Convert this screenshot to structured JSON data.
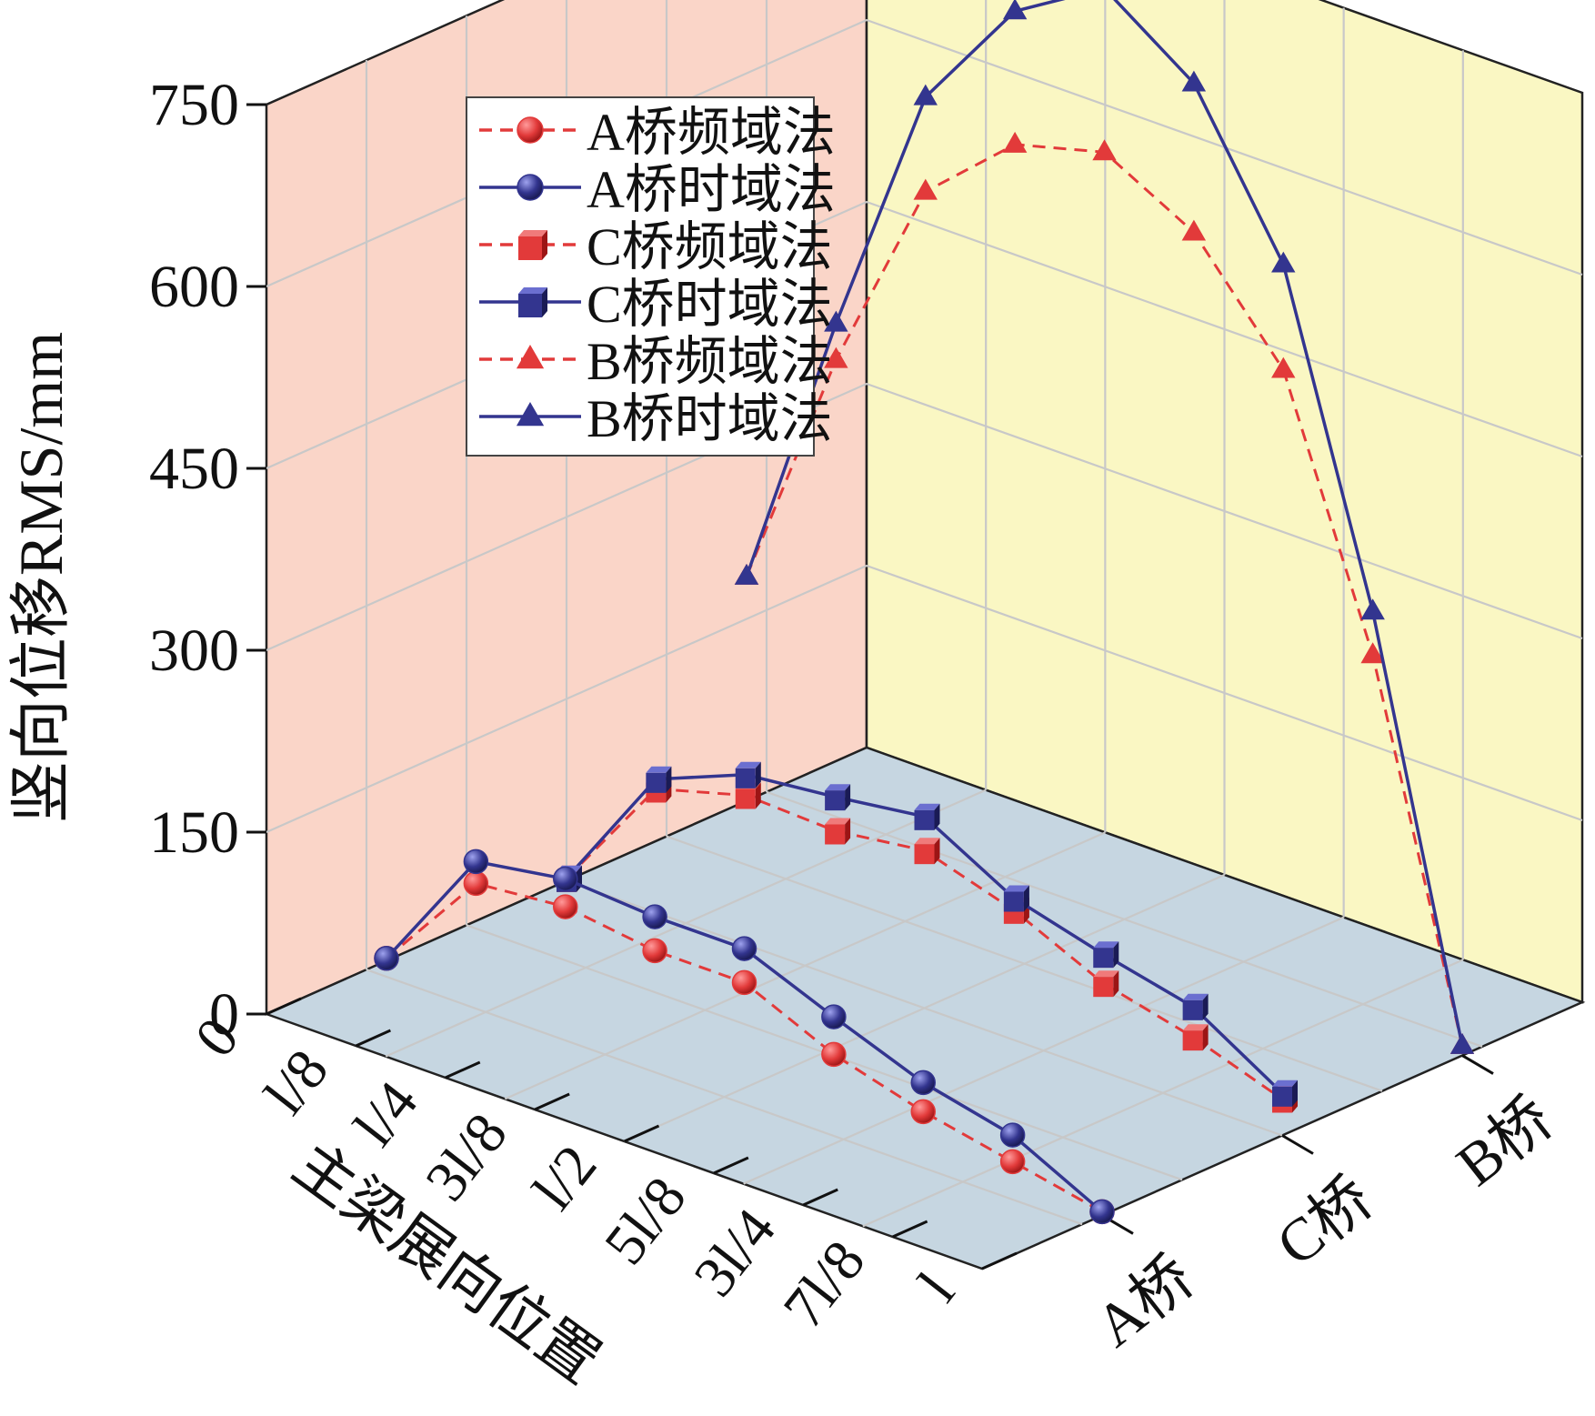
{
  "chart_data": {
    "type": "line",
    "subtype": "3d-waterfall",
    "title": "",
    "ylabel": "竖向位移RMS/mm",
    "xlabel": "主梁展向位置",
    "zlabel": "",
    "ylim": [
      0,
      750
    ],
    "y_ticks": [
      "0",
      "150",
      "300",
      "450",
      "600",
      "750"
    ],
    "x_ticks": [
      "0",
      "l/8",
      "l/4",
      "3l/8",
      "l/2",
      "5l/8",
      "3l/4",
      "7l/8",
      "l"
    ],
    "z_ticks": [
      "A桥",
      "C桥",
      "B桥"
    ],
    "grid": true,
    "legend_position": "top-left",
    "colors": {
      "red": "#e23a3a",
      "blue": "#33358f",
      "wall_left": "#fad5c8",
      "wall_back": "#faf7c3",
      "floor": "#c6d6e1",
      "grid": "#c8c8c8"
    },
    "series": [
      {
        "name": "A桥频域法",
        "bridge": "A桥",
        "marker": "circle",
        "style": "dashed",
        "color": "red",
        "values": [
          2,
          90,
          97,
          87,
          87,
          54,
          33,
          18,
          3
        ]
      },
      {
        "name": "A桥时域法",
        "bridge": "A桥",
        "marker": "circle",
        "style": "solid",
        "color": "blue",
        "values": [
          2,
          108,
          120,
          115,
          115,
          85,
          57,
          40,
          3
        ]
      },
      {
        "name": "C桥频域法",
        "bridge": "C桥",
        "marker": "square",
        "style": "dashed",
        "color": "red",
        "values": [
          2,
          102,
          123,
          120,
          130,
          107,
          73,
          55,
          30
        ]
      },
      {
        "name": "C桥时域法",
        "bridge": "C桥",
        "marker": "square",
        "style": "solid",
        "color": "blue",
        "values": [
          2,
          110,
          140,
          148,
          158,
          117,
          97,
          80,
          35
        ]
      },
      {
        "name": "B桥频域法",
        "bridge": "B桥",
        "marker": "triangle",
        "style": "dashed",
        "color": "red",
        "values": [
          185,
          390,
          555,
          620,
          640,
          600,
          513,
          304,
          8
        ]
      },
      {
        "name": "B桥时域法",
        "bridge": "B桥",
        "marker": "triangle",
        "style": "solid",
        "color": "blue",
        "values": [
          185,
          420,
          633,
          730,
          775,
          723,
          600,
          340,
          8
        ]
      }
    ]
  }
}
